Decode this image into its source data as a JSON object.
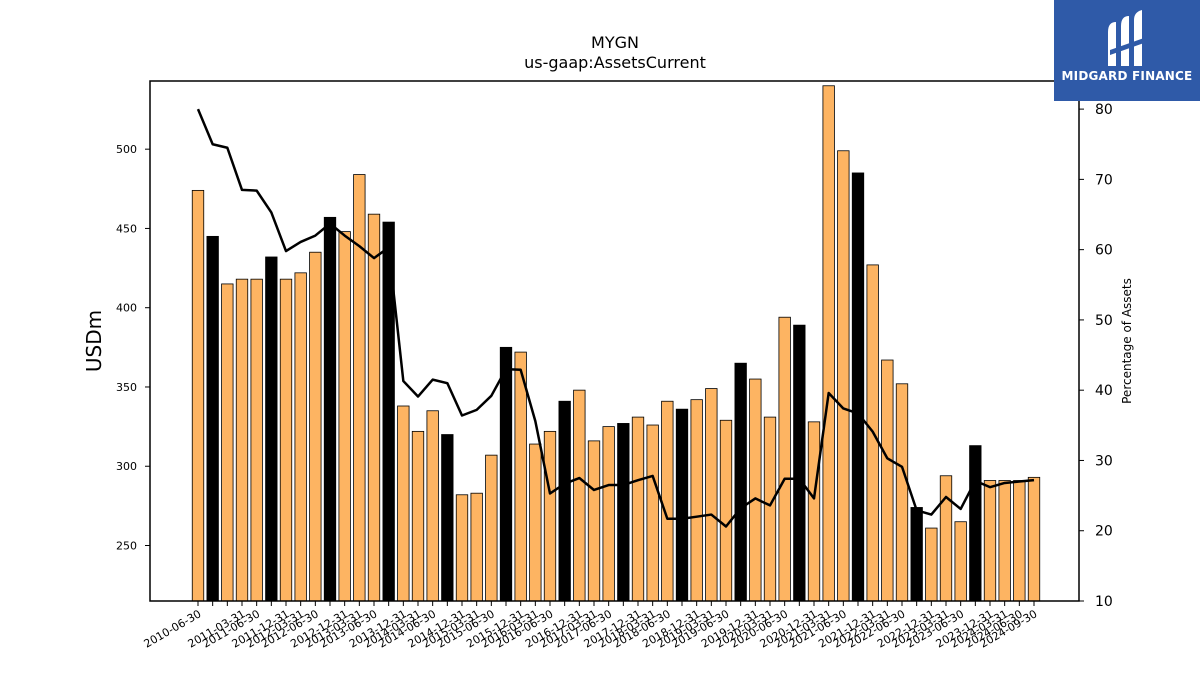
{
  "logo": {
    "text": "MIDGARD FINANCE",
    "bg_color": "#2f5aa8",
    "mark": "midgard-m-icon"
  },
  "chart_data": {
    "type": "bar",
    "title": "MYGN",
    "subtitle": "us-gaap:AssetsCurrent",
    "ylabel": "USDm",
    "y2label": "Percentage of Assets",
    "ylim": [
      215,
      543
    ],
    "y2lim": [
      10,
      84
    ],
    "yticks": [
      250,
      300,
      350,
      400,
      450,
      500
    ],
    "y2ticks": [
      10,
      20,
      30,
      40,
      50,
      60,
      70,
      80
    ],
    "colors": {
      "bar": "#fdb462",
      "bar_highlight": "#000000",
      "line": "#000000"
    },
    "categories": [
      "2010-06-30",
      "2010-09-30",
      "2010-12-31",
      "2011-03-31",
      "2011-06-30",
      "2011-09-30",
      "2011-12-31",
      "2012-03-31",
      "2012-06-30",
      "2012-09-30",
      "2012-12-31",
      "2013-03-31",
      "2013-06-30",
      "2013-09-30",
      "2013-12-31",
      "2014-03-31",
      "2014-06-30",
      "2014-09-30",
      "2014-12-31",
      "2015-03-31",
      "2015-06-30",
      "2015-09-30",
      "2015-12-31",
      "2016-03-31",
      "2016-06-30",
      "2016-09-30",
      "2016-12-31",
      "2017-03-31",
      "2017-06-30",
      "2017-09-30",
      "2017-12-31",
      "2018-03-31",
      "2018-06-30",
      "2018-09-30",
      "2018-12-31",
      "2019-03-31",
      "2019-06-30",
      "2019-09-30",
      "2019-12-31",
      "2020-03-31",
      "2020-06-30",
      "2020-09-30",
      "2020-12-31",
      "2021-03-31",
      "2021-06-30",
      "2021-09-30",
      "2021-12-31",
      "2022-03-31",
      "2022-06-30",
      "2022-09-30",
      "2022-12-31",
      "2023-03-31",
      "2023-06-30",
      "2023-09-30",
      "2023-12-31",
      "2024-03-31",
      "2024-06-30",
      "2024-09-30"
    ],
    "xtick_labels": [
      "2010-06-30",
      "2011-03-31",
      "2011-06-30",
      "2011-12-31",
      "2012-03-31",
      "2012-06-30",
      "2012-12-31",
      "2013-03-31",
      "2013-06-30",
      "2013-12-31",
      "2014-03-31",
      "2014-06-30",
      "2014-12-31",
      "2015-03-31",
      "2015-06-30",
      "2015-12-31",
      "2016-03-31",
      "2016-06-30",
      "2016-12-31",
      "2017-03-31",
      "2017-06-30",
      "2017-12-31",
      "2018-03-31",
      "2018-06-30",
      "2018-12-31",
      "2019-03-31",
      "2019-06-30",
      "2019-12-31",
      "2020-03-31",
      "2020-06-30",
      "2020-12-31",
      "2021-03-31",
      "2021-06-30",
      "2021-12-31",
      "2022-03-31",
      "2022-06-30",
      "2022-12-31",
      "2023-03-31",
      "2023-06-30",
      "2023-12-31",
      "2024-03-31",
      "2024-06-30",
      "2024-09-30"
    ],
    "series": [
      {
        "type": "bar",
        "values": [
          474,
          445,
          415,
          418,
          418,
          432,
          418,
          422,
          435,
          457,
          448,
          484,
          459,
          454,
          338,
          322,
          335,
          320,
          282,
          283,
          307,
          375,
          372,
          314,
          322,
          341,
          348,
          316,
          325,
          327,
          331,
          326,
          341,
          336,
          342,
          349,
          329,
          365,
          355,
          331,
          394,
          389,
          328,
          540,
          499,
          485,
          427,
          367,
          352,
          274,
          261,
          294,
          265,
          313,
          291,
          291,
          291,
          293
        ],
        "highlight": [
          false,
          true,
          false,
          false,
          false,
          true,
          false,
          false,
          false,
          true,
          false,
          false,
          false,
          true,
          false,
          false,
          false,
          true,
          false,
          false,
          false,
          true,
          false,
          false,
          false,
          true,
          false,
          false,
          false,
          true,
          false,
          false,
          false,
          true,
          false,
          false,
          false,
          true,
          false,
          false,
          false,
          true,
          false,
          false,
          false,
          true,
          false,
          false,
          false,
          true,
          false,
          false,
          false,
          true,
          false,
          false,
          false,
          false
        ]
      },
      {
        "type": "line",
        "axis": "right",
        "values": [
          80.0,
          75.0,
          74.5,
          68.5,
          68.4,
          65.3,
          59.8,
          61.1,
          62.0,
          63.7,
          62.0,
          60.5,
          58.8,
          60.3,
          41.3,
          39.1,
          41.5,
          41.0,
          36.4,
          37.2,
          39.2,
          43.0,
          42.9,
          35.6,
          25.3,
          26.7,
          27.5,
          25.8,
          26.5,
          26.5,
          27.2,
          27.8,
          21.7,
          21.7,
          22.0,
          22.3,
          20.6,
          23.2,
          24.6,
          23.6,
          27.4,
          27.4,
          24.6,
          39.6,
          37.4,
          36.7,
          34.1,
          30.3,
          29.1,
          22.9,
          22.3,
          24.8,
          23.1,
          27.1,
          26.2,
          26.8,
          27.0,
          27.2
        ]
      }
    ]
  }
}
